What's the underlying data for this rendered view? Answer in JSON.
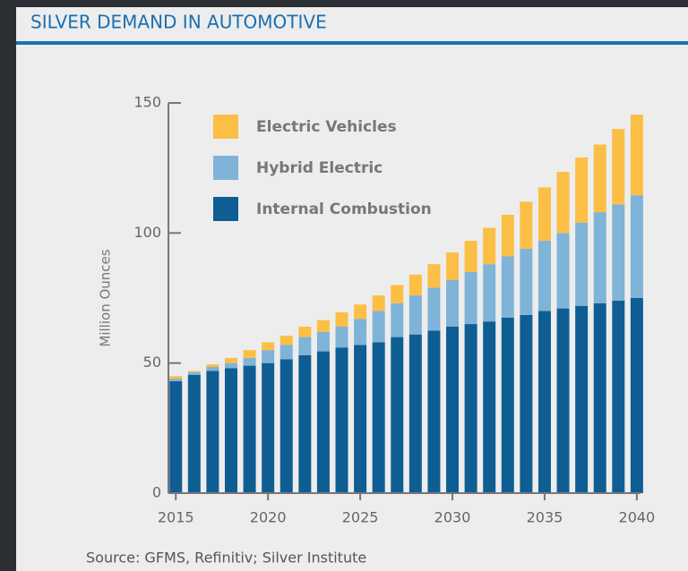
{
  "chart_data": {
    "type": "stacked_bar",
    "title": "SILVER DEMAND IN AUTOMOTIVE",
    "y_label": "Million Ounces",
    "source": "Source: GFMS, Refinitiv; Silver Institute",
    "x": [
      2015,
      2016,
      2017,
      2018,
      2019,
      2020,
      2021,
      2022,
      2023,
      2024,
      2025,
      2026,
      2027,
      2028,
      2029,
      2030,
      2031,
      2032,
      2033,
      2034,
      2035,
      2036,
      2037,
      2038,
      2039,
      2040
    ],
    "xlim": [
      2014.6,
      2040.2
    ],
    "xticks": [
      2015,
      2020,
      2025,
      2030,
      2035,
      2040
    ],
    "ylim": [
      0,
      150
    ],
    "yticks": [
      0,
      50,
      100,
      150
    ],
    "legend": "top-left",
    "series": [
      {
        "name": "Internal Combustion",
        "color": "#0e5e94",
        "values": [
          43,
          45.5,
          47,
          48,
          49,
          50,
          51.5,
          53,
          54.5,
          56,
          57,
          58,
          60,
          61,
          62.5,
          64,
          65,
          66,
          67.5,
          68.5,
          70,
          71,
          72,
          73,
          74,
          75
        ]
      },
      {
        "name": "Hybrid Electric",
        "color": "#7fb3d8",
        "values": [
          1,
          1,
          1.5,
          2,
          3,
          5,
          5.5,
          7,
          7.5,
          8,
          10,
          12,
          13,
          15,
          16.5,
          18,
          20,
          22,
          23.5,
          25.5,
          27,
          29,
          32,
          35,
          37,
          39.5
        ]
      },
      {
        "name": "Electric Vehicles",
        "color": "#fbbf45",
        "values": [
          1,
          0.5,
          1,
          2,
          3,
          3,
          3.5,
          4,
          4.5,
          5.5,
          5.5,
          6,
          7,
          8,
          9,
          10.5,
          12,
          14,
          16,
          18,
          20.5,
          23.5,
          25,
          26,
          29,
          31
        ]
      }
    ]
  }
}
